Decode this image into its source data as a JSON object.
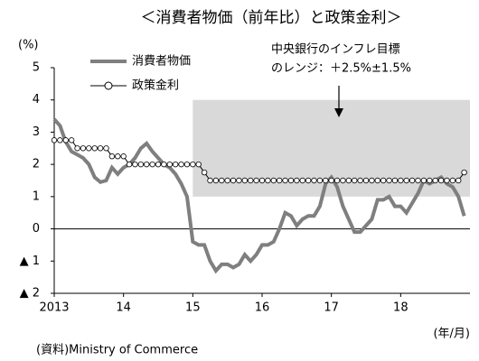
{
  "chart_data": {
    "type": "line",
    "title": "＜消費者物価（前年比）と政策金利＞",
    "y_label": "(%)",
    "x_label": "(年/月)",
    "source": "(資料)Ministry of Commerce",
    "annotation": [
      "中央銀行のインフレ目標",
      "のレンジ：＋2.5%±1.5%"
    ],
    "band": {
      "x": [
        24,
        72
      ],
      "y": [
        1,
        4
      ],
      "color": "#d9d9d9"
    },
    "x": [
      0,
      1,
      2,
      3,
      4,
      5,
      6,
      7,
      8,
      9,
      10,
      11,
      12,
      13,
      14,
      15,
      16,
      17,
      18,
      19,
      20,
      21,
      22,
      23,
      24,
      25,
      26,
      27,
      28,
      29,
      30,
      31,
      32,
      33,
      34,
      35,
      36,
      37,
      38,
      39,
      40,
      41,
      42,
      43,
      44,
      45,
      46,
      47,
      48,
      49,
      50,
      51,
      52,
      53,
      54,
      55,
      56,
      57,
      58,
      59,
      60,
      61,
      62,
      63,
      64,
      65,
      66,
      67,
      68,
      69,
      70,
      71
    ],
    "xlim": [
      0,
      72
    ],
    "xticks": [
      {
        "value": 0,
        "label": "2013"
      },
      {
        "value": 12,
        "label": "14"
      },
      {
        "value": 24,
        "label": "15"
      },
      {
        "value": 36,
        "label": "16"
      },
      {
        "value": 48,
        "label": "17"
      },
      {
        "value": 60,
        "label": "18"
      }
    ],
    "ylim": [
      -2,
      5
    ],
    "yticks": [
      {
        "value": -2,
        "label": "▲ 2"
      },
      {
        "value": -1,
        "label": "▲ 1"
      },
      0,
      1,
      2,
      3,
      4,
      5
    ],
    "series": [
      {
        "name": "消費者物価",
        "color": "#7f7f7f",
        "values": [
          3.4,
          3.2,
          2.7,
          2.4,
          2.3,
          2.2,
          2.0,
          1.6,
          1.45,
          1.5,
          1.9,
          1.7,
          1.9,
          2.0,
          2.2,
          2.5,
          2.65,
          2.4,
          2.2,
          2.0,
          1.9,
          1.7,
          1.4,
          1.0,
          -0.4,
          -0.5,
          -0.5,
          -1.0,
          -1.3,
          -1.1,
          -1.1,
          -1.2,
          -1.1,
          -0.8,
          -1.0,
          -0.8,
          -0.5,
          -0.5,
          -0.4,
          0.0,
          0.5,
          0.4,
          0.1,
          0.3,
          0.4,
          0.4,
          0.7,
          1.4,
          1.6,
          1.3,
          0.7,
          0.3,
          -0.1,
          -0.1,
          0.1,
          0.3,
          0.9,
          0.9,
          1.0,
          0.7,
          0.7,
          0.5,
          0.8,
          1.1,
          1.5,
          1.4,
          1.5,
          1.6,
          1.4,
          1.3,
          1.0,
          0.4
        ]
      },
      {
        "name": "政策金利",
        "color": "#000000",
        "values": [
          2.75,
          2.75,
          2.75,
          2.75,
          2.5,
          2.5,
          2.5,
          2.5,
          2.5,
          2.5,
          2.25,
          2.25,
          2.25,
          2.0,
          2.0,
          2.0,
          2.0,
          2.0,
          2.0,
          2.0,
          2.0,
          2.0,
          2.0,
          2.0,
          2.0,
          2.0,
          1.75,
          1.5,
          1.5,
          1.5,
          1.5,
          1.5,
          1.5,
          1.5,
          1.5,
          1.5,
          1.5,
          1.5,
          1.5,
          1.5,
          1.5,
          1.5,
          1.5,
          1.5,
          1.5,
          1.5,
          1.5,
          1.5,
          1.5,
          1.5,
          1.5,
          1.5,
          1.5,
          1.5,
          1.5,
          1.5,
          1.5,
          1.5,
          1.5,
          1.5,
          1.5,
          1.5,
          1.5,
          1.5,
          1.5,
          1.5,
          1.5,
          1.5,
          1.5,
          1.5,
          1.5,
          1.75
        ]
      }
    ]
  }
}
